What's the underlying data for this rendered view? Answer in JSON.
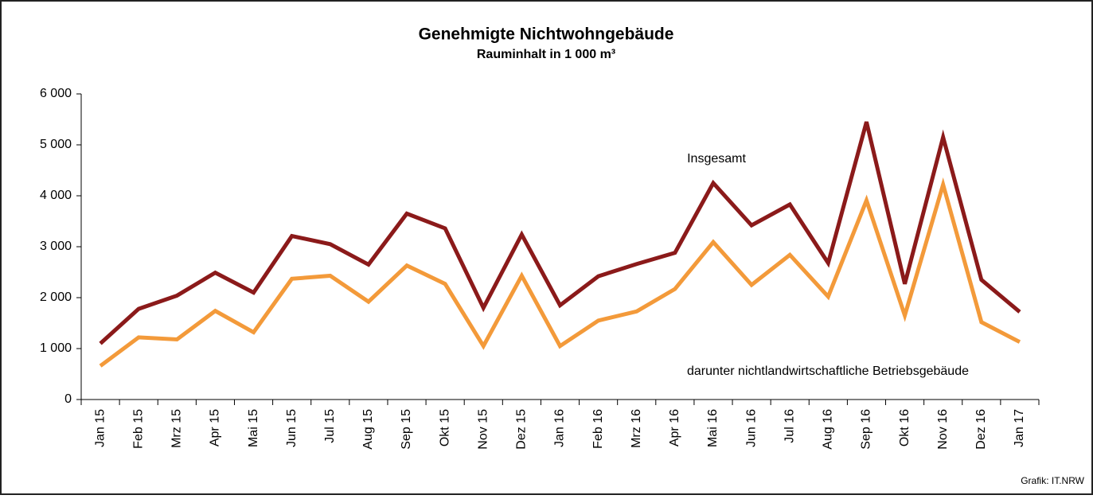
{
  "chart_data": {
    "type": "line",
    "title": "Genehmigte Nichtwohngebäude",
    "subtitle": "Rauminhalt in 1 000 m³",
    "categories": [
      "Jan 15",
      "Feb 15",
      "Mrz 15",
      "Apr 15",
      "Mai 15",
      "Jun 15",
      "Jul 15",
      "Aug 15",
      "Sep 15",
      "Okt 15",
      "Nov 15",
      "Dez 15",
      "Jan 16",
      "Feb 16",
      "Mrz 16",
      "Apr 16",
      "Mai 16",
      "Jun 16",
      "Jul 16",
      "Aug 16",
      "Sep 16",
      "Okt 16",
      "Nov 16",
      "Dez 16",
      "Jan 17"
    ],
    "series": [
      {
        "name": "Insgesamt",
        "color": "#8b1a1a",
        "values": [
          1100,
          1780,
          2040,
          2490,
          2100,
          3210,
          3050,
          2650,
          3650,
          3360,
          1800,
          3240,
          1850,
          2420,
          2660,
          2880,
          4250,
          3420,
          3830,
          2680,
          5450,
          2270,
          5150,
          2350,
          1720
        ]
      },
      {
        "name": "darunter nichtlandwirtschaftliche Betriebsgebäude",
        "color": "#f39a3a",
        "values": [
          660,
          1220,
          1180,
          1740,
          1320,
          2370,
          2430,
          1920,
          2630,
          2270,
          1050,
          2430,
          1050,
          1550,
          1730,
          2170,
          3090,
          2250,
          2840,
          2020,
          3910,
          1650,
          4220,
          1520,
          1130
        ]
      }
    ],
    "ylim": [
      0,
      6000
    ],
    "yticks": [
      0,
      {
        "value": 1000,
        "label": "1 000"
      },
      {
        "value": 2000,
        "label": "2 000"
      },
      {
        "value": 3000,
        "label": "3 000"
      },
      {
        "value": 4000,
        "label": "4 000"
      },
      {
        "value": 5000,
        "label": "5 000"
      },
      {
        "value": 6000,
        "label": "6 000"
      }
    ],
    "source": "Grafik: IT.NRW"
  }
}
